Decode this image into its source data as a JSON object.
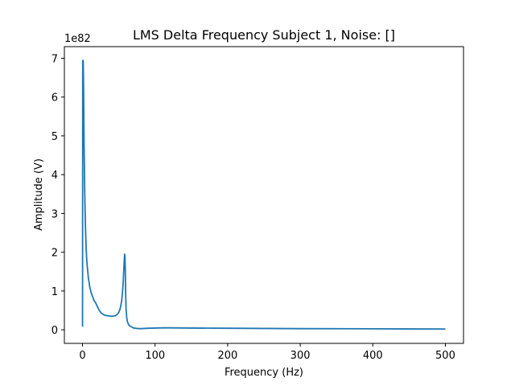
{
  "chart_data": {
    "type": "line",
    "title": "LMS Delta Frequency Subject 1, Noise: []",
    "xlabel": "Frequency (Hz)",
    "ylabel": "Amplitude (V)",
    "y_scale_factor_label": "1e82",
    "xlim": [
      -25,
      525
    ],
    "ylim": [
      -0.35,
      7.3
    ],
    "xticks": [
      0,
      100,
      200,
      300,
      400,
      500
    ],
    "yticks": [
      0,
      1,
      2,
      3,
      4,
      5,
      6,
      7
    ],
    "grid": false,
    "series": [
      {
        "color": "#1f77b4",
        "x": [
          0,
          0.3,
          0.6,
          1,
          1.5,
          2,
          3,
          4,
          5,
          6,
          8,
          10,
          12,
          14,
          16,
          18,
          20,
          23,
          26,
          30,
          35,
          40,
          45,
          48,
          50,
          52,
          54,
          55,
          56,
          57,
          58,
          58.5,
          59,
          59.5,
          60,
          61,
          62,
          64,
          67,
          70,
          75,
          80,
          90,
          100,
          110,
          120,
          150,
          200,
          250,
          300,
          350,
          400,
          450,
          500
        ],
        "values": [
          0.08,
          6.9,
          6.95,
          6.9,
          6.2,
          5.0,
          3.6,
          2.7,
          2.1,
          1.75,
          1.35,
          1.1,
          0.95,
          0.85,
          0.75,
          0.7,
          0.62,
          0.5,
          0.43,
          0.38,
          0.36,
          0.35,
          0.36,
          0.4,
          0.45,
          0.55,
          0.75,
          0.95,
          1.2,
          1.6,
          1.95,
          1.9,
          1.5,
          0.9,
          0.55,
          0.3,
          0.2,
          0.12,
          0.08,
          0.05,
          0.035,
          0.03,
          0.04,
          0.045,
          0.05,
          0.05,
          0.045,
          0.04,
          0.035,
          0.03,
          0.028,
          0.025,
          0.022,
          0.02
        ]
      }
    ]
  }
}
